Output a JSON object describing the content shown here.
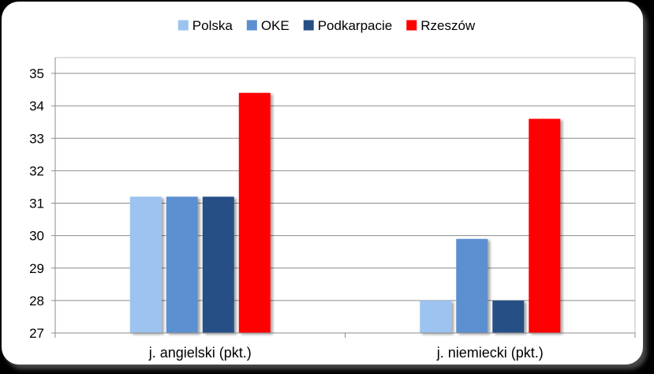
{
  "chart_data": {
    "type": "bar",
    "categories": [
      "j. angielski (pkt.)",
      "j. niemiecki (pkt.)"
    ],
    "series": [
      {
        "name": "Polska",
        "values": [
          31.2,
          28.0
        ],
        "color": "#9DC3F0"
      },
      {
        "name": "OKE",
        "values": [
          31.2,
          29.9
        ],
        "color": "#5B8FD0"
      },
      {
        "name": "Podkarpacie",
        "values": [
          31.2,
          28.0
        ],
        "color": "#274F86"
      },
      {
        "name": "Rzeszów",
        "values": [
          34.4,
          33.6
        ],
        "color": "#FF0000"
      }
    ],
    "ylim": [
      27,
      35
    ],
    "yticks": [
      27,
      28,
      29,
      30,
      31,
      32,
      33,
      34,
      35
    ],
    "grid": true,
    "legend_position": "top"
  }
}
